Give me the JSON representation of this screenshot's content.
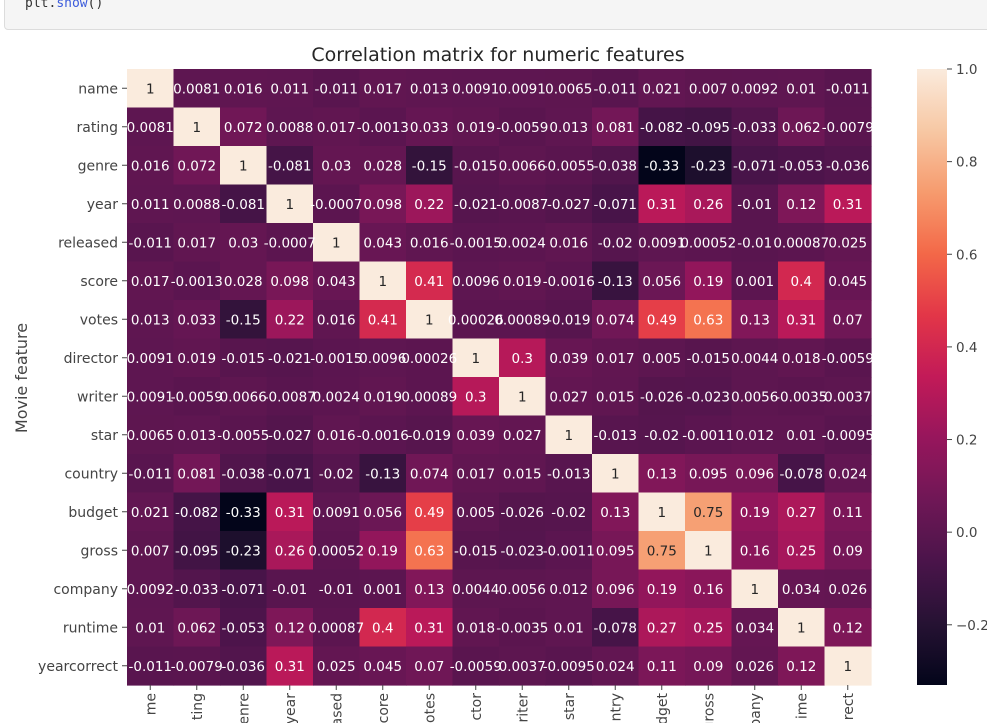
{
  "code": {
    "object": "plt",
    "dot": ".",
    "method": "show",
    "parens": "()"
  },
  "colors": {
    "background": "#ffffff",
    "text": "#262626"
  },
  "chart_data": {
    "type": "heatmap",
    "title": "Correlation matrix for numeric features",
    "ylabel": "Movie feature",
    "xlabel": "",
    "row_labels": [
      "name",
      "rating",
      "genre",
      "year",
      "released",
      "score",
      "votes",
      "director",
      "writer",
      "star",
      "country",
      "budget",
      "gross",
      "company",
      "runtime",
      "yearcorrect"
    ],
    "col_labels_visible": [
      "me",
      "ting",
      "enre",
      "year",
      "ased",
      "core",
      "otes",
      "ctor",
      "riter",
      "star",
      "ntry",
      "dget",
      "gross",
      "pany",
      "ime",
      "rect"
    ],
    "colormap": "rocket",
    "colorbar": {
      "min": -0.33,
      "max": 1.0,
      "ticks": [
        1.0,
        0.8,
        0.6,
        0.4,
        0.2,
        0.0,
        -0.2
      ],
      "tick_labels": [
        "1.0",
        "0.8",
        "0.6",
        "0.4",
        "0.2",
        "0.0",
        "−0.2"
      ]
    },
    "annot_labels": [
      [
        "1",
        "0.0081",
        "0.016",
        "0.011",
        "-0.011",
        "0.017",
        "0.013",
        "0.0091",
        "0.0091",
        "0.0065",
        "-0.011",
        "0.021",
        "0.007",
        "0.0092",
        "0.01",
        "-0.011"
      ],
      [
        "0.0081",
        "1",
        "0.072",
        "0.0088",
        "0.017",
        "-0.0013",
        "0.033",
        "0.019",
        "-0.0059",
        "0.013",
        "0.081",
        "-0.082",
        "-0.095",
        "-0.033",
        "0.062",
        "-0.0079"
      ],
      [
        "0.016",
        "0.072",
        "1",
        "-0.081",
        "0.03",
        "0.028",
        "-0.15",
        "-0.015",
        "0.0066",
        "-0.0055",
        "-0.038",
        "-0.33",
        "-0.23",
        "-0.071",
        "-0.053",
        "-0.036"
      ],
      [
        "0.011",
        "0.0088",
        "-0.081",
        "1",
        "-0.0007",
        "0.098",
        "0.22",
        "-0.021",
        "-0.0087",
        "-0.027",
        "-0.071",
        "0.31",
        "0.26",
        "-0.01",
        "0.12",
        "0.31"
      ],
      [
        "-0.011",
        "0.017",
        "0.03",
        "-0.0007",
        "1",
        "0.043",
        "0.016",
        "-0.0015",
        "0.0024",
        "0.016",
        "-0.02",
        "0.0091",
        "0.00052",
        "-0.01",
        "0.00087",
        "0.025"
      ],
      [
        "0.017",
        "-0.0013",
        "0.028",
        "0.098",
        "0.043",
        "1",
        "0.41",
        "0.0096",
        "0.019",
        "-0.0016",
        "-0.13",
        "0.056",
        "0.19",
        "0.001",
        "0.4",
        "0.045"
      ],
      [
        "0.013",
        "0.033",
        "-0.15",
        "0.22",
        "0.016",
        "0.41",
        "1",
        "0.00026",
        "0.00089",
        "-0.019",
        "0.074",
        "0.49",
        "0.63",
        "0.13",
        "0.31",
        "0.07"
      ],
      [
        "0.0091",
        "0.019",
        "-0.015",
        "-0.021",
        "-0.0015",
        "0.0096",
        "0.00026",
        "1",
        "0.3",
        "0.039",
        "0.017",
        "0.005",
        "-0.015",
        "0.0044",
        "0.018",
        "-0.0059"
      ],
      [
        "0.0091",
        "-0.0059",
        "0.0066",
        "-0.0087",
        "0.0024",
        "0.019",
        "0.00089",
        "0.3",
        "1",
        "0.027",
        "0.015",
        "-0.026",
        "-0.023",
        "0.0056",
        "-0.0035",
        "0.0037"
      ],
      [
        "0.0065",
        "0.013",
        "-0.0055",
        "-0.027",
        "0.016",
        "-0.0016",
        "-0.019",
        "0.039",
        "0.027",
        "1",
        "-0.013",
        "-0.02",
        "-0.0011",
        "0.012",
        "0.01",
        "-0.0095"
      ],
      [
        "-0.011",
        "0.081",
        "-0.038",
        "-0.071",
        "-0.02",
        "-0.13",
        "0.074",
        "0.017",
        "0.015",
        "-0.013",
        "1",
        "0.13",
        "0.095",
        "0.096",
        "-0.078",
        "0.024"
      ],
      [
        "0.021",
        "-0.082",
        "-0.33",
        "0.31",
        "0.0091",
        "0.056",
        "0.49",
        "0.005",
        "-0.026",
        "-0.02",
        "0.13",
        "1",
        "0.75",
        "0.19",
        "0.27",
        "0.11"
      ],
      [
        "0.007",
        "-0.095",
        "-0.23",
        "0.26",
        "0.00052",
        "0.19",
        "0.63",
        "-0.015",
        "-0.023",
        "-0.0011",
        "0.095",
        "0.75",
        "1",
        "0.16",
        "0.25",
        "0.09"
      ],
      [
        "0.0092",
        "-0.033",
        "-0.071",
        "-0.01",
        "-0.01",
        "0.001",
        "0.13",
        "0.0044",
        "0.0056",
        "0.012",
        "0.096",
        "0.19",
        "0.16",
        "1",
        "0.034",
        "0.026"
      ],
      [
        "0.01",
        "0.062",
        "-0.053",
        "0.12",
        "0.00087",
        "0.4",
        "0.31",
        "0.018",
        "-0.0035",
        "0.01",
        "-0.078",
        "0.27",
        "0.25",
        "0.034",
        "1",
        "0.12"
      ],
      [
        "-0.011",
        "-0.0079",
        "-0.036",
        "0.31",
        "0.025",
        "0.045",
        "0.07",
        "-0.0059",
        "0.0037",
        "-0.0095",
        "0.024",
        "0.11",
        "0.09",
        "0.026",
        "0.12",
        "1"
      ]
    ]
  }
}
